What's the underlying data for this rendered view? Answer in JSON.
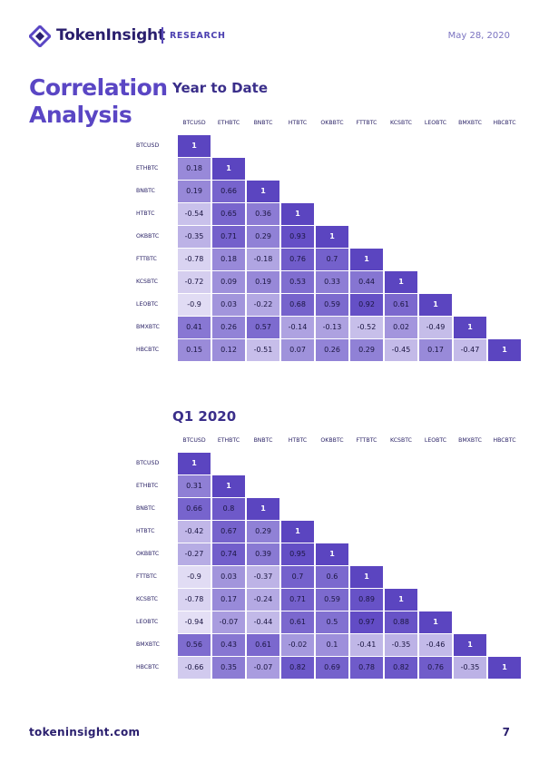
{
  "header": {
    "brand": "TokenInsight",
    "section": "RESEARCH",
    "date": "May 28, 2020"
  },
  "page_title": {
    "line1": "Correlation",
    "line2": "Analysis"
  },
  "footer": {
    "url": "tokeninsight.com",
    "page_number": "7"
  },
  "colors": {
    "accent": "#5a46c4",
    "dark": "#2a1f6e",
    "cell_high": "#6a52c4",
    "cell_low": "#e6e2f4"
  },
  "chart_data": [
    {
      "type": "heatmap",
      "title": "Year to Date",
      "labels": [
        "BTCUSD",
        "ETHBTC",
        "BNBTC",
        "HTBTC",
        "OKBBTC",
        "FTTBTC",
        "KCSBTC",
        "LEOBTC",
        "BMXBTC",
        "HBCBTC"
      ],
      "matrix": [
        [
          1
        ],
        [
          0.18,
          1
        ],
        [
          0.19,
          0.66,
          1
        ],
        [
          -0.54,
          0.65,
          0.36,
          1
        ],
        [
          -0.35,
          0.71,
          0.29,
          0.93,
          1
        ],
        [
          -0.78,
          0.18,
          -0.18,
          0.76,
          0.7,
          1
        ],
        [
          -0.72,
          0.09,
          0.19,
          0.53,
          0.33,
          0.44,
          1
        ],
        [
          -0.9,
          0.03,
          -0.22,
          0.68,
          0.59,
          0.92,
          0.61,
          1
        ],
        [
          0.41,
          0.26,
          0.57,
          -0.14,
          -0.13,
          -0.52,
          0.02,
          -0.49,
          1
        ],
        [
          0.15,
          0.12,
          -0.51,
          0.07,
          0.26,
          0.29,
          -0.45,
          0.17,
          -0.47,
          1
        ]
      ]
    },
    {
      "type": "heatmap",
      "title": "Q1 2020",
      "labels": [
        "BTCUSD",
        "ETHBTC",
        "BNBTC",
        "HTBTC",
        "OKBBTC",
        "FTTBTC",
        "KCSBTC",
        "LEOBTC",
        "BMXBTC",
        "HBCBTC"
      ],
      "matrix": [
        [
          1
        ],
        [
          0.31,
          1
        ],
        [
          0.66,
          0.8,
          1
        ],
        [
          -0.42,
          0.67,
          0.29,
          1
        ],
        [
          -0.27,
          0.74,
          0.39,
          0.95,
          1
        ],
        [
          -0.9,
          0.03,
          -0.37,
          0.7,
          0.6,
          1
        ],
        [
          -0.78,
          0.17,
          -0.24,
          0.71,
          0.59,
          0.89,
          1
        ],
        [
          -0.94,
          -0.07,
          -0.44,
          0.61,
          0.5,
          0.97,
          0.88,
          1
        ],
        [
          0.56,
          0.43,
          0.61,
          -0.02,
          0.1,
          -0.41,
          -0.35,
          -0.46,
          1
        ],
        [
          -0.66,
          0.35,
          -0.07,
          0.82,
          0.69,
          0.78,
          0.82,
          0.76,
          -0.35,
          1
        ]
      ]
    }
  ]
}
